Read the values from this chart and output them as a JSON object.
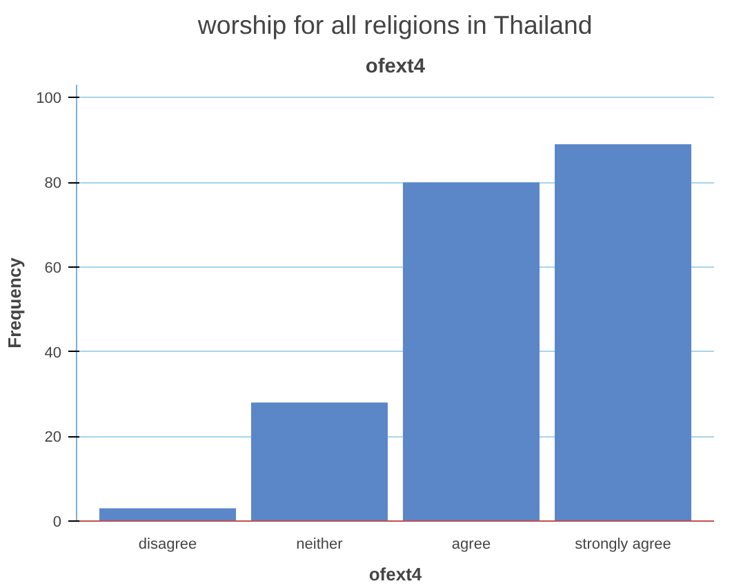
{
  "chart_data": {
    "type": "bar",
    "title": "worship for all religions in Thailand",
    "subtitle": "ofext4",
    "xlabel": "ofext4",
    "ylabel": "Frequency",
    "categories": [
      "disagree",
      "neither",
      "agree",
      "strongly agree"
    ],
    "values": [
      3,
      28,
      80,
      89
    ],
    "color": "#5b87c9",
    "ylim": [
      0,
      103
    ],
    "yticks": [
      0,
      20,
      40,
      60,
      80,
      100
    ],
    "grid": "y"
  }
}
